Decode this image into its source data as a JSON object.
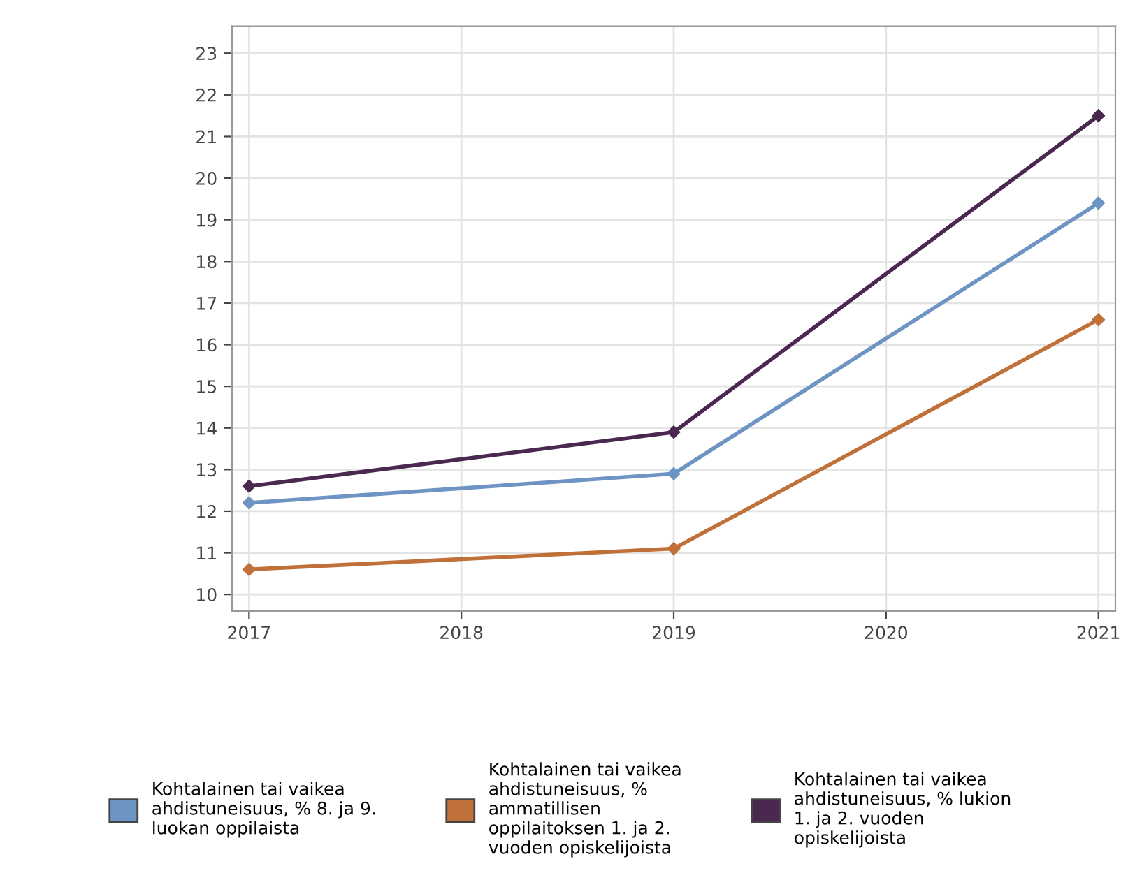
{
  "chart_data": {
    "type": "line",
    "x": [
      2017,
      2019,
      2021
    ],
    "series": [
      {
        "name": "Kohtalainen tai vaikea\nahdistuneisuus, % 8. ja 9.\nluokan oppilaista",
        "color": "#6d94c2",
        "values": [
          12.2,
          12.9,
          19.4
        ]
      },
      {
        "name": "Kohtalainen tai vaikea\nahdistuneisuus, %\nammatillisen\noppilaitoksen 1. ja 2.\nvuoden opiskelijoista",
        "color": "#bf7139",
        "values": [
          10.6,
          11.1,
          16.6
        ]
      },
      {
        "name": "Kohtalainen tai vaikea\nahdistuneisuus, % lukion\n1. ja 2. vuoden\nopiskelijoista",
        "color": "#4a2850",
        "values": [
          12.6,
          13.9,
          21.5
        ]
      }
    ],
    "xlim": [
      2016.92,
      2021.08
    ],
    "xticks": [
      2017,
      2018,
      2019,
      2020,
      2021
    ],
    "ylim": [
      9.6,
      23.65
    ],
    "yticks": [
      10,
      11,
      12,
      13,
      14,
      15,
      16,
      17,
      18,
      19,
      20,
      21,
      22,
      23
    ],
    "grid": true,
    "legend": "bottom",
    "marker": "diamond",
    "line_style": "solid"
  }
}
